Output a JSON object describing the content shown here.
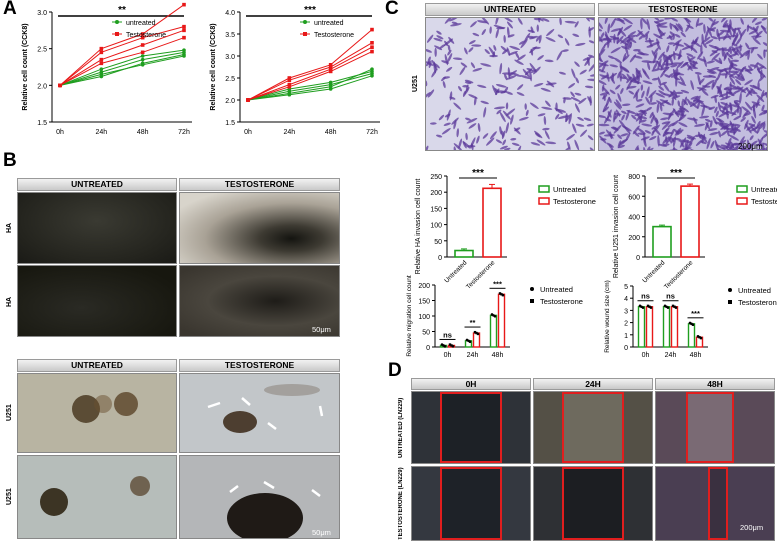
{
  "panels": {
    "a": "A",
    "b": "B",
    "c": "C",
    "d": "D"
  },
  "colors": {
    "untreated": "#1f9e1f",
    "testosterone": "#e81818"
  },
  "panelA": {
    "legend": {
      "untreated": "untreated",
      "testosterone": "Testosterone"
    },
    "charts": [
      {
        "ylabel": "Relative cell count (CCK8)",
        "sig": "**",
        "ylim": [
          1.5,
          3.0
        ],
        "yticks": [
          "1.5",
          "2.0",
          "2.5",
          "3.0"
        ],
        "x": [
          "0h",
          "24h",
          "48h",
          "72h"
        ],
        "untreated": [
          [
            2.0,
            2.12,
            2.3,
            2.42
          ],
          [
            2.0,
            2.18,
            2.35,
            2.45
          ],
          [
            2.0,
            2.22,
            2.4,
            2.48
          ],
          [
            2.0,
            2.15,
            2.28,
            2.4
          ]
        ],
        "testosterone": [
          [
            2.0,
            2.5,
            2.7,
            3.1
          ],
          [
            2.0,
            2.45,
            2.65,
            2.8
          ],
          [
            2.0,
            2.35,
            2.55,
            2.75
          ],
          [
            2.0,
            2.3,
            2.45,
            2.65
          ]
        ]
      },
      {
        "ylabel": "Relative cell count (CCK8)",
        "sig": "***",
        "ylim": [
          1.5,
          4.0
        ],
        "yticks": [
          "1.5",
          "2.0",
          "2.5",
          "3.0",
          "3.5",
          "4.0"
        ],
        "x": [
          "0h",
          "24h",
          "48h",
          "72h"
        ],
        "untreated": [
          [
            2.0,
            2.12,
            2.25,
            2.55
          ],
          [
            2.0,
            2.2,
            2.35,
            2.6
          ],
          [
            2.0,
            2.25,
            2.4,
            2.65
          ],
          [
            2.0,
            2.15,
            2.3,
            2.7
          ]
        ],
        "testosterone": [
          [
            2.0,
            2.5,
            2.8,
            3.6
          ],
          [
            2.0,
            2.45,
            2.75,
            3.3
          ],
          [
            2.0,
            2.35,
            2.7,
            3.2
          ],
          [
            2.0,
            2.3,
            2.65,
            3.1
          ]
        ]
      }
    ]
  },
  "panelB": {
    "top": {
      "col1": "UNTREATED",
      "col2": "TESTOSTERONE",
      "row1": "HA",
      "row2": "HA",
      "scale": "50μm"
    },
    "bottom": {
      "col1": "UNTREATED",
      "col2": "TESTOSTERONE",
      "row1": "U251",
      "row2": "U251",
      "scale": "50μm"
    }
  },
  "panelC": {
    "col1": "UNTREATED",
    "col2": "TESTOSTERONE",
    "row": "U251",
    "scale": "200μm",
    "legend": {
      "untreated": "Untreated",
      "testosterone": "Testosterone"
    }
  },
  "panelD": {
    "col1": "0H",
    "col2": "24H",
    "col3": "48H",
    "row1": "UNTREATED (LN229)",
    "row2": "TESTOSTERONE (LN229)",
    "scale": "200μm"
  },
  "chart_data": [
    {
      "type": "line",
      "title": "",
      "xlabel": "",
      "ylabel": "Relative cell count (CCK8)",
      "x": [
        "0h",
        "24h",
        "48h",
        "72h"
      ],
      "ylim": [
        1.5,
        3.0
      ],
      "series": [
        {
          "name": "untreated",
          "values": [
            2.0,
            2.17,
            2.33,
            2.44
          ]
        },
        {
          "name": "Testosterone",
          "values": [
            2.0,
            2.4,
            2.59,
            2.83
          ]
        }
      ],
      "annotations": [
        "**"
      ]
    },
    {
      "type": "line",
      "title": "",
      "xlabel": "",
      "ylabel": "Relative cell count (CCK8)",
      "x": [
        "0h",
        "24h",
        "48h",
        "72h"
      ],
      "ylim": [
        1.5,
        4.0
      ],
      "series": [
        {
          "name": "untreated",
          "values": [
            2.0,
            2.18,
            2.33,
            2.63
          ]
        },
        {
          "name": "Testosterone",
          "values": [
            2.0,
            2.4,
            2.73,
            3.3
          ]
        }
      ],
      "annotations": [
        "***"
      ]
    },
    {
      "type": "bar",
      "ylabel": "Relative HA invasion cell count",
      "categories": [
        "Untreated",
        "Testosterone"
      ],
      "values": [
        20,
        212
      ],
      "errors": [
        5,
        12
      ],
      "ylim": [
        0,
        250
      ],
      "yticks": [
        "0",
        "50",
        "100",
        "150",
        "200",
        "250"
      ],
      "annotations": [
        "***"
      ]
    },
    {
      "type": "bar",
      "ylabel": "Relative U251 invasion cell count",
      "categories": [
        "Untreated",
        "Testosterone"
      ],
      "values": [
        300,
        700
      ],
      "errors": [
        15,
        20
      ],
      "ylim": [
        0,
        800
      ],
      "yticks": [
        "0",
        "200",
        "400",
        "600",
        "800"
      ],
      "annotations": [
        "***"
      ]
    },
    {
      "type": "bar",
      "ylabel": "Relative migration cell count",
      "categories": [
        "0h",
        "24h",
        "48h"
      ],
      "series": [
        {
          "name": "Untreated",
          "values": [
            5,
            20,
            102
          ]
        },
        {
          "name": "Testosterone",
          "values": [
            5,
            45,
            170
          ]
        }
      ],
      "ylim": [
        0,
        200
      ],
      "yticks": [
        "0",
        "50",
        "100",
        "150",
        "200"
      ],
      "annotations": [
        "ns",
        "**",
        "***"
      ]
    },
    {
      "type": "bar",
      "ylabel": "Relative wound size (cm)",
      "categories": [
        "0h",
        "24h",
        "48h"
      ],
      "series": [
        {
          "name": "Untreated",
          "values": [
            3.3,
            3.3,
            1.9
          ]
        },
        {
          "name": "Testosterone",
          "values": [
            3.3,
            3.3,
            0.8
          ]
        }
      ],
      "ylim": [
        0,
        5
      ],
      "yticks": [
        "0",
        "1",
        "2",
        "3",
        "4",
        "5"
      ],
      "annotations": [
        "ns",
        "ns",
        "***"
      ]
    }
  ]
}
